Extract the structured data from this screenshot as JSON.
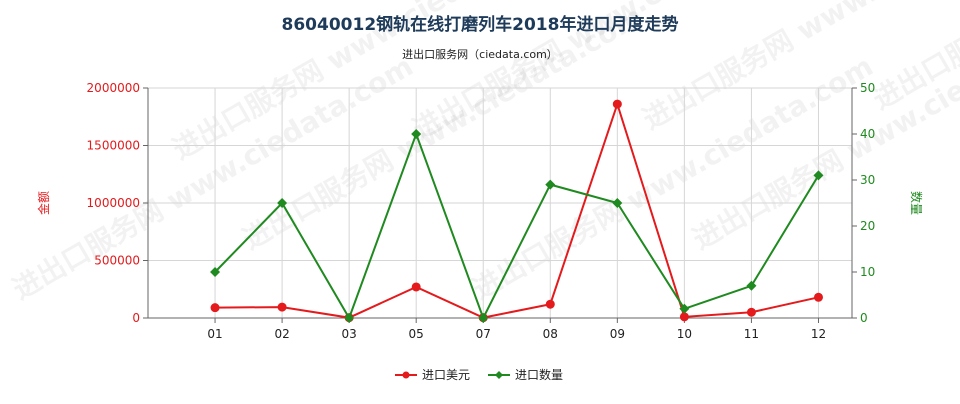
{
  "chart_data": {
    "type": "line",
    "title": "86040012钢轨在线打磨列车2018年进口月度走势",
    "subtitle": "进出口服务网（ciedata.com）",
    "watermark": "进出口服务网 www.ciedata.com",
    "categories": [
      "01",
      "02",
      "03",
      "05",
      "07",
      "08",
      "09",
      "10",
      "11",
      "12"
    ],
    "y_left": {
      "label": "金额",
      "range": [
        0,
        2000000
      ],
      "ticks": [
        0,
        500000,
        1000000,
        1500000,
        2000000
      ],
      "tick_labels": [
        "0",
        "500000",
        "1000000",
        "1500000",
        "2000000"
      ],
      "color": "#e41a1c"
    },
    "y_right": {
      "label": "数量",
      "range": [
        0,
        50
      ],
      "ticks": [
        0,
        10,
        20,
        30,
        40,
        50
      ],
      "tick_labels": [
        "0",
        "10",
        "20",
        "30",
        "40",
        "50"
      ],
      "color": "#1f8a1f"
    },
    "series": [
      {
        "name": "进口美元",
        "axis": "left",
        "color": "#e41a1c",
        "marker": "circle",
        "values": [
          90000,
          95000,
          3000,
          270000,
          3000,
          120000,
          1860000,
          10000,
          50000,
          180000
        ]
      },
      {
        "name": "进口数量",
        "axis": "right",
        "color": "#1f8a1f",
        "marker": "diamond",
        "values": [
          10,
          25,
          0,
          40,
          0,
          29,
          25,
          2,
          7,
          31
        ]
      }
    ],
    "grid": true,
    "legend_position": "bottom-center"
  }
}
